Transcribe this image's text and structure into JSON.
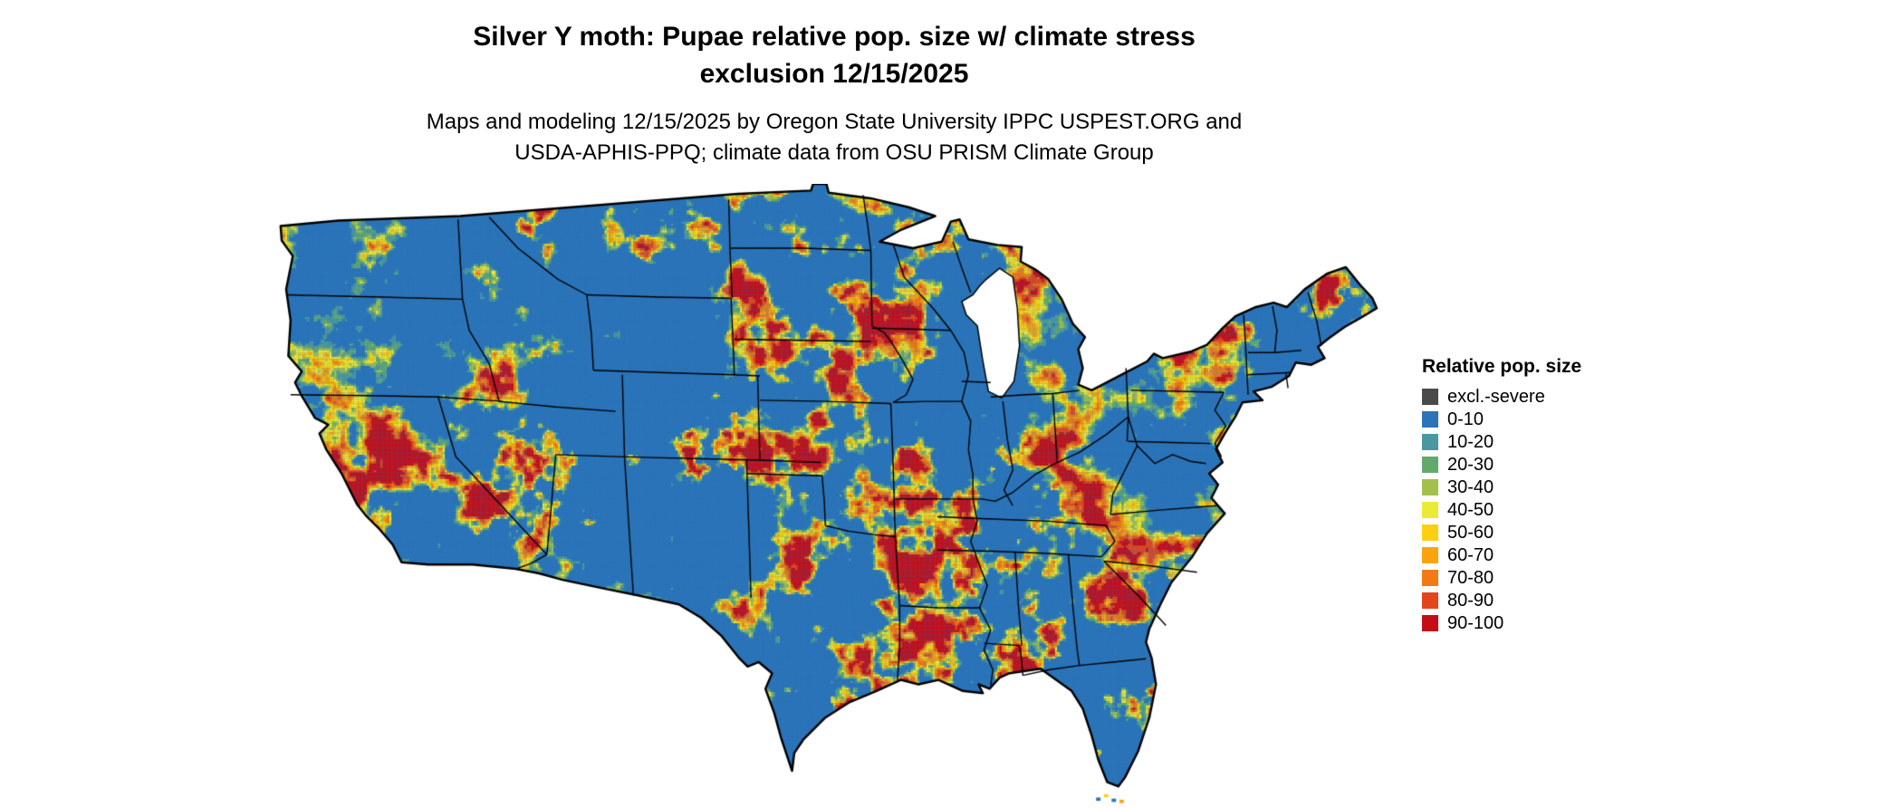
{
  "title": {
    "line1": "Silver Y moth: Pupae relative pop. size w/ climate stress",
    "line2": "exclusion 12/15/2025"
  },
  "subtitle": {
    "line1": "Maps and modeling 12/15/2025 by Oregon State University IPPC USPEST.ORG and",
    "line2": "USDA-APHIS-PPQ; climate data from OSU PRISM Climate Group"
  },
  "map": {
    "region": "Contiguous United States",
    "ocean_color": "#ffffff",
    "state_border_color": "#000000",
    "base_color": "#2b74b8"
  },
  "legend": {
    "title": "Relative pop. size",
    "items": [
      {
        "label": "excl.-severe",
        "color": "#4a4a4a"
      },
      {
        "label": "0-10",
        "color": "#2b74b8"
      },
      {
        "label": "10-20",
        "color": "#4b97a0"
      },
      {
        "label": "20-30",
        "color": "#62a96e"
      },
      {
        "label": "30-40",
        "color": "#a3c04d"
      },
      {
        "label": "40-50",
        "color": "#ebea34"
      },
      {
        "label": "50-60",
        "color": "#fdd00f"
      },
      {
        "label": "60-70",
        "color": "#f9a30f"
      },
      {
        "label": "70-80",
        "color": "#f27a12"
      },
      {
        "label": "80-90",
        "color": "#e2471b"
      },
      {
        "label": "90-100",
        "color": "#c50d17"
      }
    ]
  }
}
